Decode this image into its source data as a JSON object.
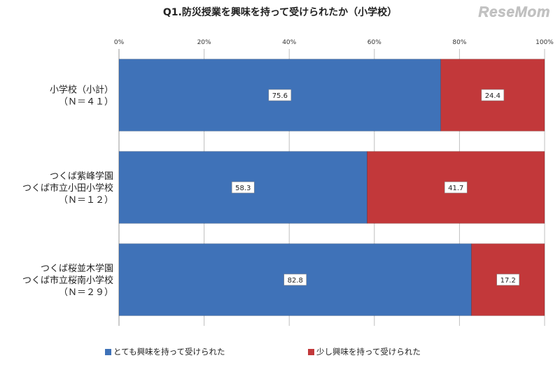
{
  "watermark": "ReseMom",
  "colors": {
    "series1": "#3f72b8",
    "series2": "#c2383a",
    "grid": "#bfbfbf",
    "label_box_bg": "#ffffff"
  },
  "chart_data": {
    "type": "bar",
    "orientation": "horizontal",
    "stacked": true,
    "percent_stacked": true,
    "title": "Q1.防災授業を興味を持って受けられたか（小学校）",
    "xlim": [
      0,
      100
    ],
    "x_ticks": [
      "0%",
      "20%",
      "40%",
      "60%",
      "80%",
      "100%"
    ],
    "grid": true,
    "legend_position": "bottom",
    "categories": [
      [
        "小学校（小計）",
        "（Ｎ＝４１）"
      ],
      [
        "つくば紫峰学園",
        "つくば市立小田小学校",
        "（Ｎ＝１２）"
      ],
      [
        "つくば桜並木学園",
        "つくば市立桜南小学校",
        "（Ｎ＝２９）"
      ]
    ],
    "series": [
      {
        "name": "とても興味を持って受けられた",
        "values": [
          75.6,
          58.3,
          82.8
        ],
        "labels": [
          "75.6",
          "58.3",
          "82.8"
        ]
      },
      {
        "name": "少し興味を持って受けられた",
        "values": [
          24.4,
          41.7,
          17.2
        ],
        "labels": [
          "24.4",
          "41.7",
          "17.2"
        ]
      }
    ]
  }
}
